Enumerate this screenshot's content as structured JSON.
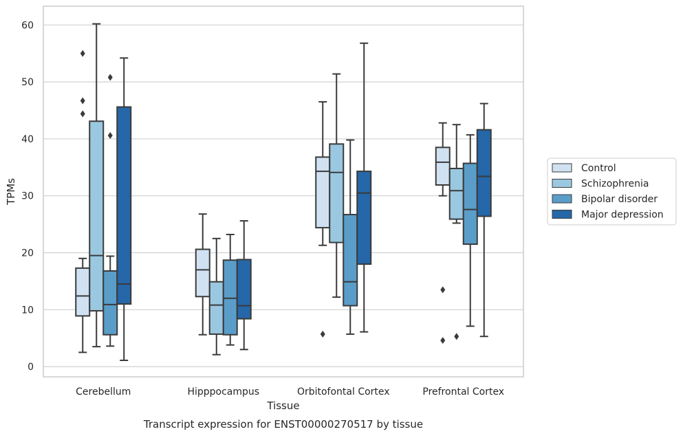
{
  "chart_data": {
    "type": "box",
    "categories": [
      "Cerebellum",
      "Hipppocampus",
      "Orbitofontal Cortex",
      "Prefrontal Cortex"
    ],
    "xlabel": "Tissue",
    "ylabel": "TPMs",
    "caption": "Transcript expression for ENST00000270517 by tissue",
    "ylim": [
      -1.8,
      63.3
    ],
    "yticks": [
      0,
      10,
      20,
      30,
      40,
      50,
      60
    ],
    "grid": true,
    "legend_position": "right",
    "series": [
      {
        "name": "Control",
        "color": "#d0e1f2",
        "boxes": [
          {
            "whisker_low": 2.5,
            "q1": 8.9,
            "median": 12.4,
            "q3": 17.3,
            "whisker_high": 19.0,
            "outliers": [
              55.0,
              46.7,
              44.4
            ]
          },
          {
            "whisker_low": 5.6,
            "q1": 12.3,
            "median": 17.0,
            "q3": 20.6,
            "whisker_high": 26.8,
            "outliers": []
          },
          {
            "whisker_low": 21.3,
            "q1": 24.4,
            "median": 34.3,
            "q3": 36.8,
            "whisker_high": 46.5,
            "outliers": [
              5.7
            ]
          },
          {
            "whisker_low": 30.0,
            "q1": 31.9,
            "median": 35.9,
            "q3": 38.5,
            "whisker_high": 42.8,
            "outliers": [
              13.5,
              4.6
            ]
          }
        ]
      },
      {
        "name": "Schizophrenia",
        "color": "#9ac8e0",
        "boxes": [
          {
            "whisker_low": 3.5,
            "q1": 9.8,
            "median": 19.5,
            "q3": 43.1,
            "whisker_high": 60.2,
            "outliers": []
          },
          {
            "whisker_low": 2.1,
            "q1": 5.7,
            "median": 10.8,
            "q3": 14.9,
            "whisker_high": 22.5,
            "outliers": []
          },
          {
            "whisker_low": 12.2,
            "q1": 21.8,
            "median": 34.1,
            "q3": 39.1,
            "whisker_high": 51.4,
            "outliers": []
          },
          {
            "whisker_low": 25.2,
            "q1": 25.9,
            "median": 30.9,
            "q3": 34.8,
            "whisker_high": 42.5,
            "outliers": [
              5.3
            ]
          }
        ]
      },
      {
        "name": "Bipolar disorder",
        "color": "#5a9dc9",
        "boxes": [
          {
            "whisker_low": 3.6,
            "q1": 5.6,
            "median": 10.9,
            "q3": 16.8,
            "whisker_high": 19.4,
            "outliers": [
              50.8,
              40.6
            ]
          },
          {
            "whisker_low": 3.8,
            "q1": 5.6,
            "median": 12.0,
            "q3": 18.7,
            "whisker_high": 23.2,
            "outliers": []
          },
          {
            "whisker_low": 5.7,
            "q1": 10.7,
            "median": 14.9,
            "q3": 26.7,
            "whisker_high": 39.8,
            "outliers": []
          },
          {
            "whisker_low": 7.1,
            "q1": 21.5,
            "median": 27.6,
            "q3": 35.7,
            "whisker_high": 40.7,
            "outliers": []
          }
        ]
      },
      {
        "name": "Major depression",
        "color": "#2567a8",
        "boxes": [
          {
            "whisker_low": 1.1,
            "q1": 11.0,
            "median": 14.5,
            "q3": 45.6,
            "whisker_high": 54.2,
            "outliers": []
          },
          {
            "whisker_low": 3.0,
            "q1": 8.4,
            "median": 10.7,
            "q3": 18.8,
            "whisker_high": 25.6,
            "outliers": []
          },
          {
            "whisker_low": 6.1,
            "q1": 18.0,
            "median": 30.5,
            "q3": 34.3,
            "whisker_high": 56.8,
            "outliers": []
          },
          {
            "whisker_low": 5.3,
            "q1": 26.4,
            "median": 33.4,
            "q3": 41.6,
            "whisker_high": 46.2,
            "outliers": []
          }
        ]
      }
    ]
  }
}
